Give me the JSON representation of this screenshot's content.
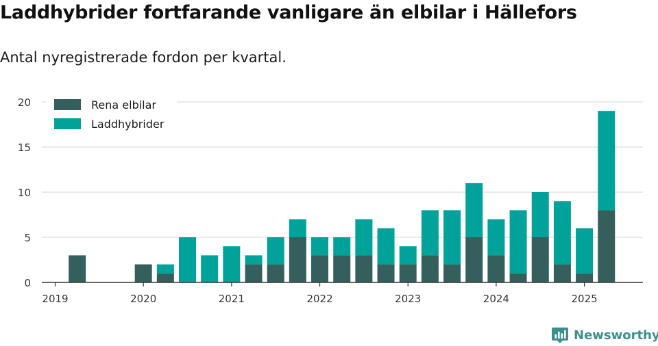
{
  "title": "Laddhybrider fortfarande vanligare än elbilar i Hällefors",
  "subtitle": "Antal nyregistrerade fordon per kvartal.",
  "brand": "Newsworthy",
  "colors": {
    "elbilar": "#355f5d",
    "laddhybrider": "#00a29a",
    "grid": "#dddddd",
    "axis": "#333333",
    "brand": "#3c8f8c"
  },
  "chart_data": {
    "type": "bar",
    "stacked": true,
    "x": [
      "2019-Q1",
      "2019-Q2",
      "2019-Q3",
      "2019-Q4",
      "2020-Q1",
      "2020-Q2",
      "2020-Q3",
      "2020-Q4",
      "2021-Q1",
      "2021-Q2",
      "2021-Q3",
      "2021-Q4",
      "2022-Q1",
      "2022-Q2",
      "2022-Q3",
      "2022-Q4",
      "2023-Q1",
      "2023-Q2",
      "2023-Q3",
      "2023-Q4",
      "2024-Q1",
      "2024-Q2",
      "2024-Q3",
      "2024-Q4",
      "2025-Q1",
      "2025-Q2"
    ],
    "series": [
      {
        "name": "Rena elbilar",
        "values": [
          0,
          3,
          0,
          0,
          2,
          1,
          0,
          0,
          0,
          2,
          2,
          5,
          3,
          3,
          3,
          2,
          2,
          3,
          2,
          5,
          3,
          1,
          5,
          2,
          1,
          8
        ]
      },
      {
        "name": "Laddhybrider",
        "values": [
          0,
          0,
          0,
          0,
          0,
          1,
          5,
          3,
          4,
          1,
          3,
          2,
          2,
          2,
          4,
          4,
          2,
          5,
          6,
          6,
          4,
          7,
          5,
          7,
          5,
          11
        ]
      }
    ],
    "x_tick_labels": [
      "2019",
      "2020",
      "2021",
      "2022",
      "2023",
      "2024",
      "2025"
    ],
    "y_ticks": [
      0,
      5,
      10,
      15,
      20
    ],
    "ylim": [
      0,
      20
    ],
    "xlabel": "",
    "ylabel": "",
    "grid": true,
    "legend": "top-left"
  }
}
